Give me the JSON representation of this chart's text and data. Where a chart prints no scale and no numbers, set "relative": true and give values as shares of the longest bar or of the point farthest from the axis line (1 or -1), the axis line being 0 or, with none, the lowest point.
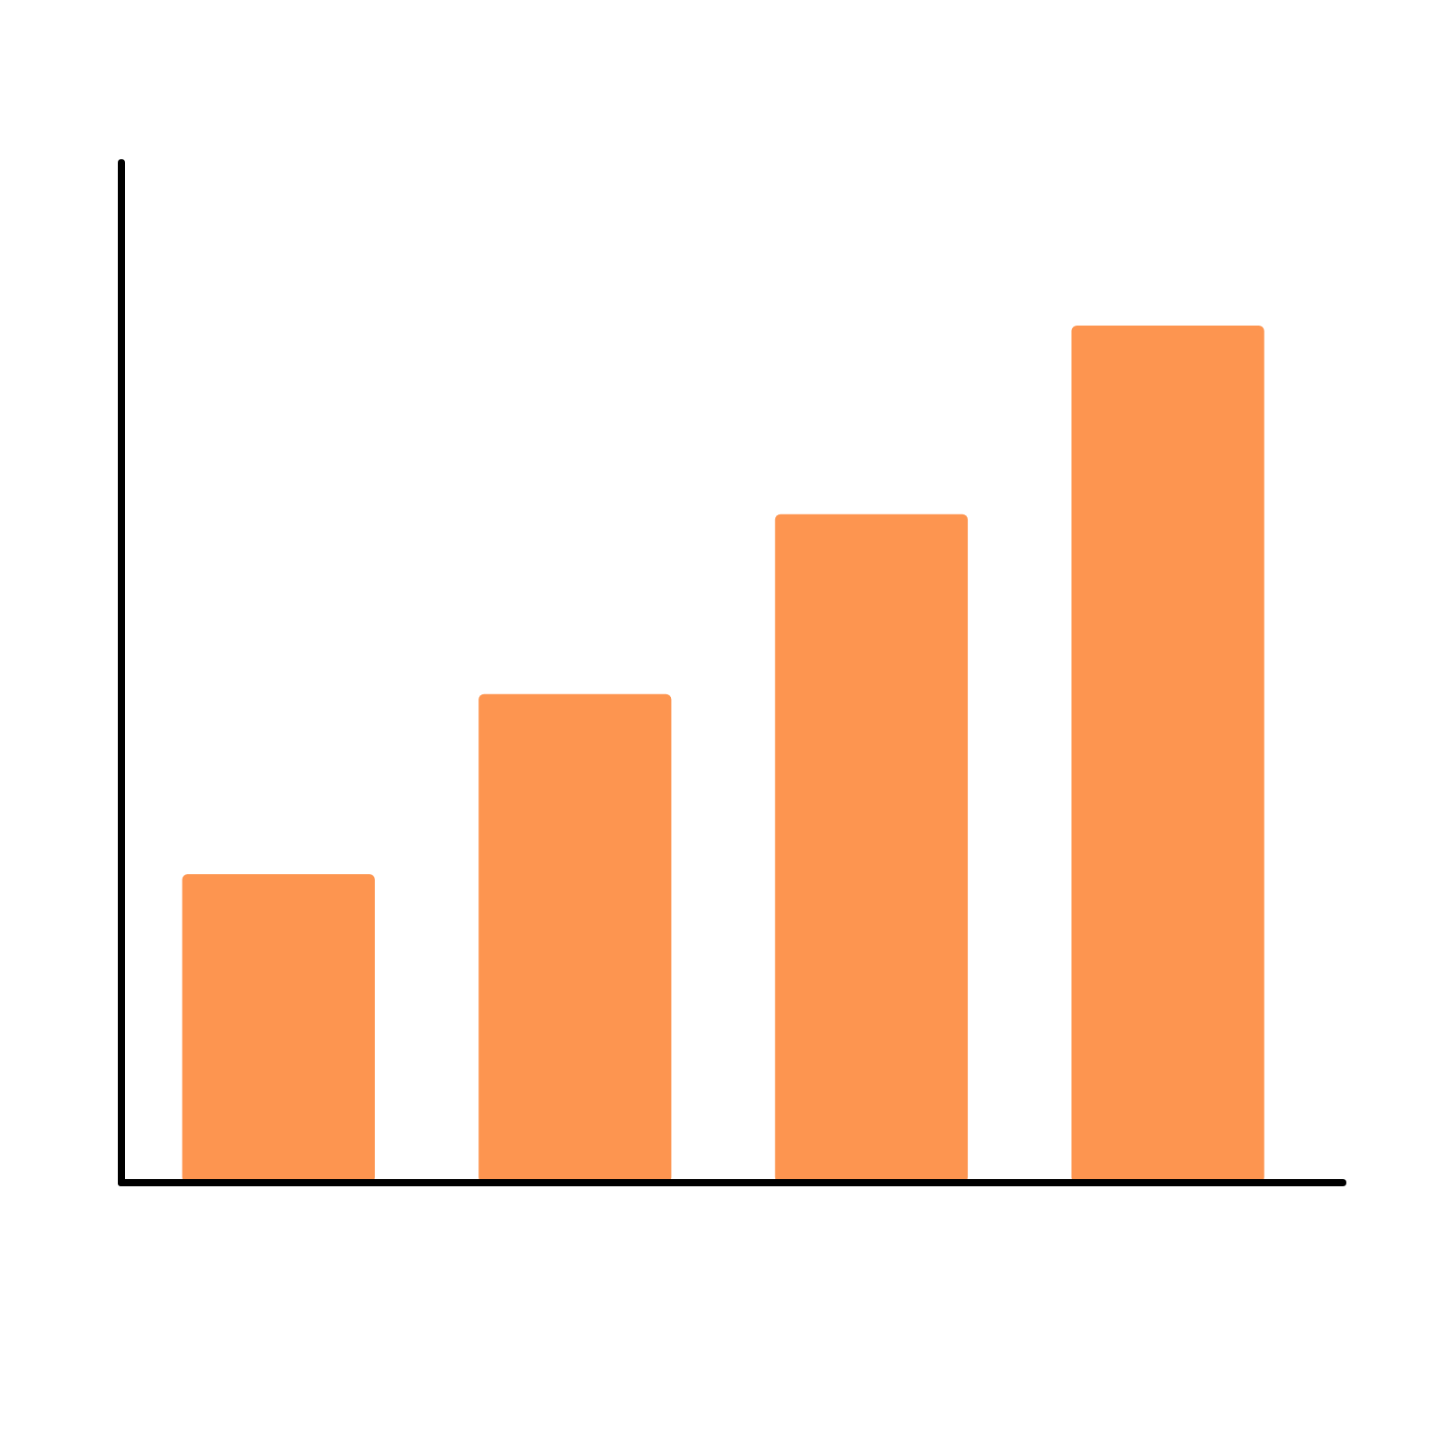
{
  "chart_data": {
    "type": "bar",
    "categories": [
      null,
      null,
      null,
      null
    ],
    "values": [
      0.36,
      0.57,
      0.78,
      1
    ],
    "color": "#fd9550",
    "relative": true
  }
}
